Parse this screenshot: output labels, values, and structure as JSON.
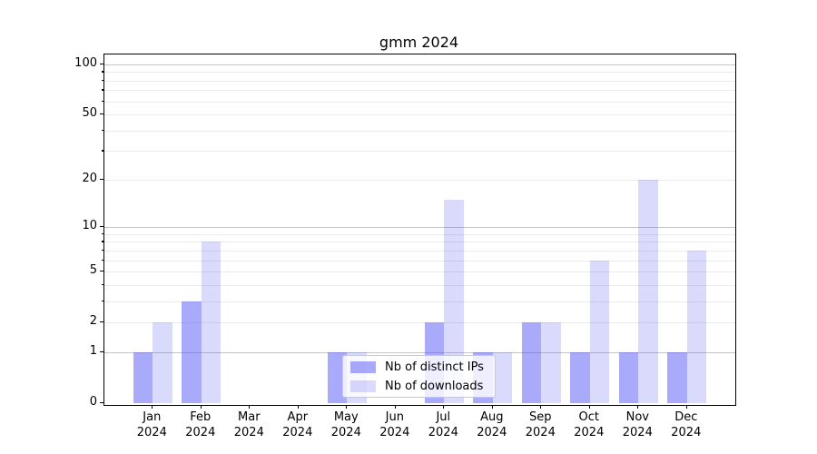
{
  "title": "gmm 2024",
  "chart_data": {
    "type": "bar",
    "title": "gmm 2024",
    "categories": [
      "Jan 2024",
      "Feb 2024",
      "Mar 2024",
      "Apr 2024",
      "May 2024",
      "Jun 2024",
      "Jul 2024",
      "Aug 2024",
      "Sep 2024",
      "Oct 2024",
      "Nov 2024",
      "Dec 2024"
    ],
    "months": [
      "Jan",
      "Feb",
      "Mar",
      "Apr",
      "May",
      "Jun",
      "Jul",
      "Aug",
      "Sep",
      "Oct",
      "Nov",
      "Dec"
    ],
    "year": "2024",
    "series": [
      {
        "name": "Nb of distinct IPs",
        "color": "rgba(85,85,245,0.5)",
        "values": [
          1,
          3,
          0,
          0,
          1,
          0,
          2,
          1,
          2,
          1,
          1,
          1
        ]
      },
      {
        "name": "Nb of downloads",
        "color": "rgba(85,85,245,0.22)",
        "values": [
          2,
          8,
          0,
          0,
          1,
          0,
          15,
          1,
          2,
          6,
          20,
          7
        ]
      }
    ],
    "yscale": "log1p",
    "ylim": [
      0,
      115
    ],
    "yticks": [
      0,
      1,
      2,
      5,
      10,
      20,
      50,
      100
    ],
    "major_gridlines": [
      1,
      10,
      100
    ],
    "minor_gridlines": [
      2,
      3,
      4,
      5,
      6,
      7,
      8,
      9,
      20,
      30,
      40,
      50,
      60,
      70,
      80,
      90
    ],
    "minor_tick_marks": [
      3,
      4,
      6,
      7,
      8,
      9,
      30,
      40,
      60,
      70,
      80,
      90
    ],
    "grid": "horizontal",
    "legend_position": "lower center"
  },
  "legend": {
    "items": [
      {
        "label": "Nb of distinct IPs",
        "swatch_color": "rgba(85,85,245,0.5)"
      },
      {
        "label": "Nb of downloads",
        "swatch_color": "rgba(85,85,245,0.22)"
      }
    ]
  },
  "colors": {
    "bar_base": "#5555f5",
    "bar_dark_rendered": "#aaaaf8",
    "bar_light_rendered": "#d8d8fa",
    "major_grid": "#c4c4c4",
    "minor_grid": "#eaeaea",
    "axis": "#000000",
    "legend_border": "#c9c9c9",
    "background": "#ffffff"
  }
}
